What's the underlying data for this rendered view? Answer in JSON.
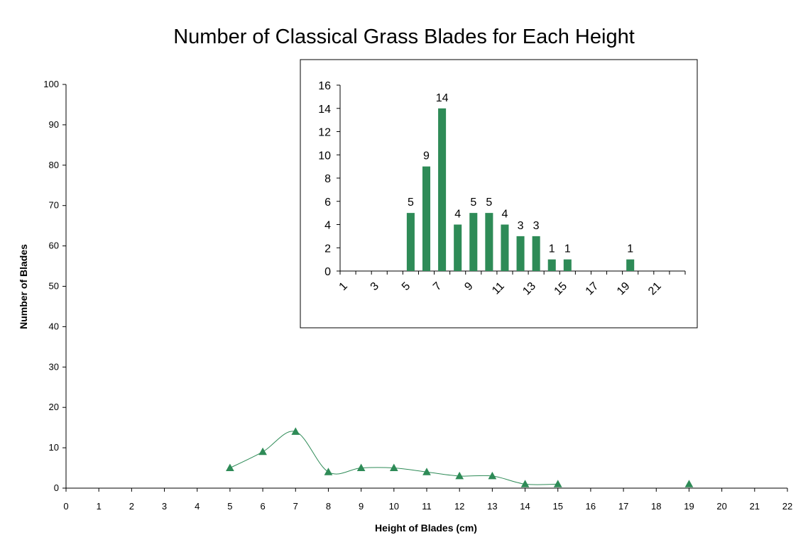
{
  "chart_data": [
    {
      "type": "line",
      "title": "Number of Classical Grass Blades for Each Height",
      "xlabel": "Height of Blades (cm)",
      "ylabel": "Number of Blades",
      "xlim": [
        0,
        22
      ],
      "ylim": [
        0,
        100
      ],
      "x_ticks": [
        0,
        1,
        2,
        3,
        4,
        5,
        6,
        7,
        8,
        9,
        10,
        11,
        12,
        13,
        14,
        15,
        16,
        17,
        18,
        19,
        20,
        21,
        22
      ],
      "y_ticks": [
        0,
        10,
        20,
        30,
        40,
        50,
        60,
        70,
        80,
        90,
        100
      ],
      "series": [
        {
          "x": [
            5,
            6,
            7,
            8,
            9,
            10,
            11,
            12,
            13,
            14,
            15
          ],
          "y": [
            5,
            9,
            14,
            4,
            5,
            5,
            4,
            3,
            3,
            1,
            1
          ],
          "line": "smooth",
          "marker": "triangle",
          "color": "#2e8b57"
        },
        {
          "x": [
            19
          ],
          "y": [
            1
          ],
          "line": "none",
          "marker": "triangle",
          "color": "#2e8b57"
        }
      ],
      "grid": false,
      "legend": "none"
    },
    {
      "type": "bar",
      "placement": "inset",
      "categories": [
        "1",
        "2",
        "3",
        "4",
        "5",
        "6",
        "7",
        "8",
        "9",
        "10",
        "11",
        "12",
        "13",
        "14",
        "15",
        "16",
        "17",
        "18",
        "19",
        "20",
        "21",
        "22"
      ],
      "values": [
        0,
        0,
        0,
        0,
        5,
        9,
        14,
        4,
        5,
        5,
        4,
        3,
        3,
        1,
        1,
        0,
        0,
        0,
        1,
        0,
        0,
        0
      ],
      "tick_labels": [
        "1",
        "3",
        "5",
        "7",
        "9",
        "11",
        "13",
        "15",
        "17",
        "19",
        "21"
      ],
      "ylim": [
        0,
        16
      ],
      "y_ticks": [
        0,
        2,
        4,
        6,
        8,
        10,
        12,
        14,
        16
      ],
      "bar_color": "#2e8b57",
      "data_labels": true
    }
  ]
}
